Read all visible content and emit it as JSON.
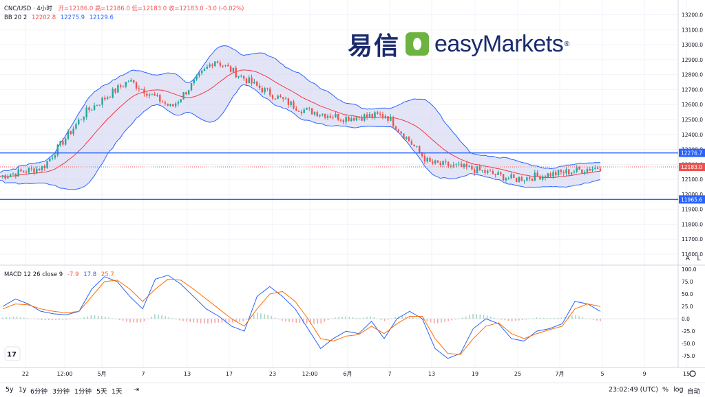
{
  "header": {
    "symbol_timeframe": "CNC/USD · 4小时",
    "ohlc_text": "开=12186.0 高=12186.0 低=12183.0 收=12183.0 -3.0 (-0.02%)",
    "bb_label": "BB 20 2",
    "bb_basis": "12202.8",
    "bb_upper": "12275.9",
    "bb_lower": "12129.6",
    "macd_label": "MACD 12 26 close 9",
    "macd_hist": "-7.9",
    "macd_line": "17.8",
    "macd_signal": "25.7"
  },
  "logo": {
    "cn": "易信",
    "en": "easyMarkets",
    "reg": "®"
  },
  "bottom": {
    "timeframes": [
      "5y",
      "1y",
      "6分钟",
      "3分钟",
      "1分钟",
      "5天",
      "1天"
    ],
    "clock": "23:02:49 (UTC)",
    "percent": "%",
    "log": "log",
    "auto": "自动"
  },
  "axis_buttons": {
    "a": "A",
    "l": "L"
  },
  "colors": {
    "up": "#26a69a",
    "down": "#ef5350",
    "bb_fill": "#d1d4f0",
    "bb_band": "#2962ff",
    "basis": "#f23645",
    "hline": "#2962ff",
    "last_price": "#ef5350",
    "macd": "#2962ff",
    "signal": "#ff6d00"
  },
  "chart_data": [
    {
      "type": "line",
      "title": "CNC/USD · 4小时",
      "series": [
        {
          "name": "BB 20 2",
          "x": [
            "22",
            "12:00",
            "5月",
            "7",
            "13",
            "17",
            "23",
            "12:00",
            "6月",
            "7",
            "13",
            "19",
            "25",
            "7月",
            "5"
          ],
          "values": [
            12120,
            12180,
            12550,
            12760,
            12580,
            12900,
            12720,
            12570,
            12510,
            12530,
            12210,
            12170,
            12100,
            12140,
            12183
          ]
        }
      ],
      "ylim": [
        11600,
        13230
      ],
      "yticks": [
        13200,
        13100,
        13000,
        12900,
        12800,
        12700,
        12600,
        12500,
        12400,
        12300,
        12200,
        12100,
        12000,
        11900,
        11800,
        11700,
        11600
      ],
      "xticks": [
        "22",
        "12:00",
        "5月",
        "7",
        "13",
        "17",
        "23",
        "12:00",
        "6月",
        "7",
        "13",
        "19",
        "25",
        "7月",
        "5",
        "9",
        "15"
      ],
      "horizontal_lines": [
        12276.7,
        11965.6
      ],
      "last_price": 12183.0
    },
    {
      "type": "line",
      "title": "MACD 12 26 close 9",
      "series": [
        {
          "name": "MACD",
          "values": [
            25,
            40,
            30,
            15,
            10,
            8,
            15,
            60,
            85,
            75,
            45,
            20,
            80,
            88,
            70,
            45,
            20,
            5,
            -15,
            -25,
            45,
            65,
            45,
            20,
            -20,
            -60,
            -40,
            -25,
            -30,
            -5,
            -40,
            0,
            15,
            0,
            -60,
            -80,
            -70,
            -20,
            0,
            -10,
            -40,
            -45,
            -25,
            -20,
            -10,
            35,
            30,
            15
          ]
        },
        {
          "name": "signal",
          "values": [
            20,
            30,
            28,
            20,
            15,
            12,
            15,
            45,
            75,
            78,
            60,
            35,
            60,
            80,
            78,
            60,
            40,
            20,
            0,
            -15,
            20,
            50,
            55,
            35,
            0,
            -40,
            -45,
            -35,
            -32,
            -15,
            -30,
            -10,
            5,
            5,
            -40,
            -70,
            -72,
            -40,
            -15,
            -8,
            -30,
            -40,
            -30,
            -22,
            -15,
            20,
            30,
            25
          ]
        }
      ],
      "ylim": [
        -90,
        100
      ],
      "yticks": [
        100.0,
        75.0,
        50.0,
        25.0,
        0.0,
        -25.0,
        -50.0,
        -75.0
      ]
    }
  ]
}
